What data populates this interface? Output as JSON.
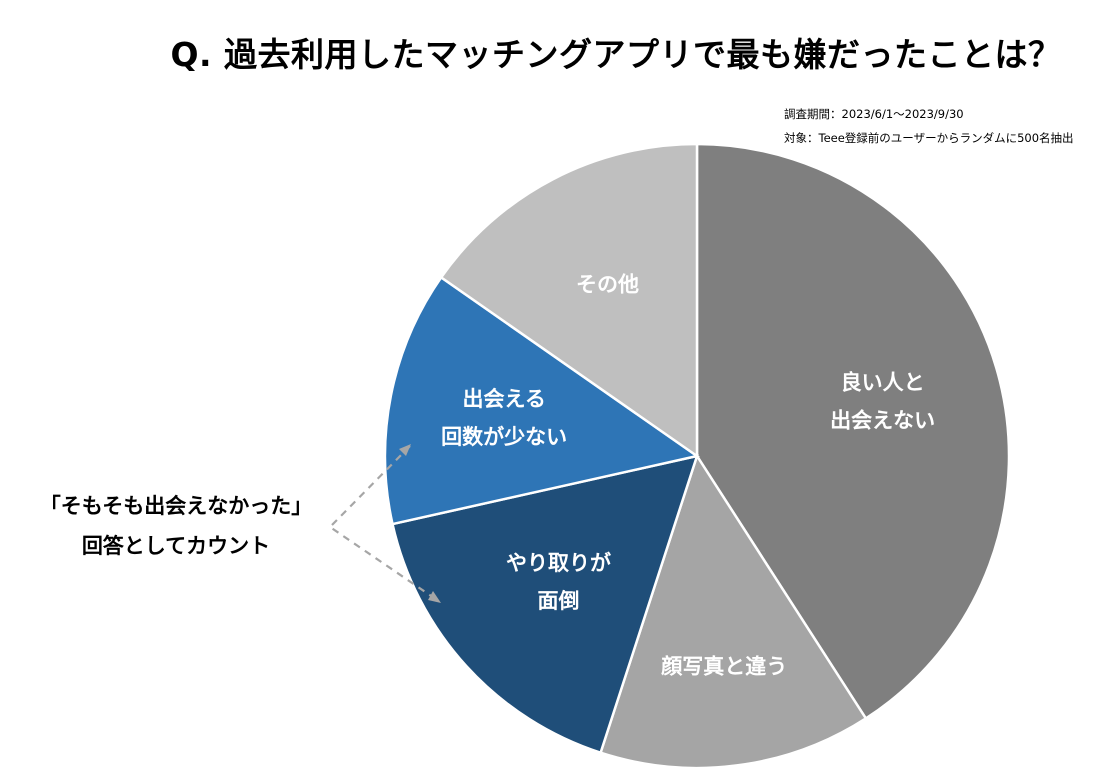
{
  "title": "Q. 過去利用したマッチングアプリで最も嫌だったことは？",
  "survey_period": "調査期間：2023/6/1～2023/9/30",
  "survey_target": "対象：Teee登録前のユーザーからランダムに500名抽出",
  "callout": {
    "line1": "「そもそも出会えなかった」",
    "line2": "回答としてカウント"
  },
  "colors": {
    "good_people": "#7f7f7f",
    "photo_diff": "#a5a5a5",
    "exchange": "#1f4e79",
    "few_meet": "#2e75b6",
    "other": "#bfbfbf",
    "arrow": "#a6a6a6"
  },
  "chart_data": {
    "type": "pie",
    "title": "Q. 過去利用したマッチングアプリで最も嫌だったことは？",
    "start": "12 o'clock",
    "direction": "clockwise",
    "legend": "none",
    "values_unit": "percent (estimated from slice angles)",
    "slices": [
      {
        "key": "good_people",
        "label_lines": [
          "良い人と",
          "出会えない"
        ],
        "value": 40.9
      },
      {
        "key": "photo_diff",
        "label_lines": [
          "顔写真と違う"
        ],
        "value": 14.1
      },
      {
        "key": "exchange",
        "label_lines": [
          "やり取りが",
          "面倒"
        ],
        "value": 16.5
      },
      {
        "key": "few_meet",
        "label_lines": [
          "出会える",
          "回数が少ない"
        ],
        "value": 13.2
      },
      {
        "key": "other",
        "label_lines": [
          "その他"
        ],
        "value": 15.3
      }
    ]
  }
}
